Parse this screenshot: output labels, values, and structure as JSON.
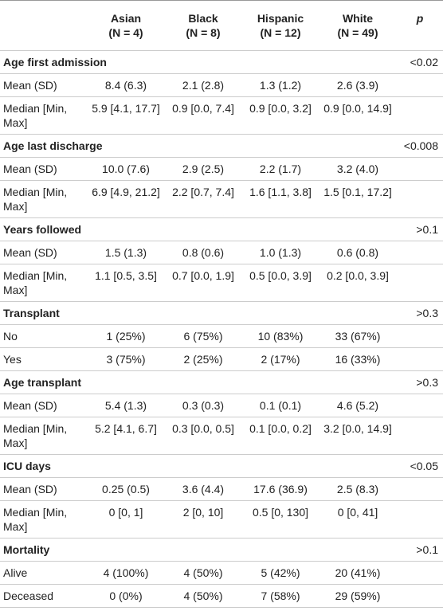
{
  "table": {
    "header": {
      "columns": [
        {
          "name": "Asian",
          "n": "(N = 4)"
        },
        {
          "name": "Black",
          "n": "(N = 8)"
        },
        {
          "name": "Hispanic",
          "n": "(N = 12)"
        },
        {
          "name": "White",
          "n": "(N = 49)"
        }
      ],
      "p": "p"
    },
    "sections": [
      {
        "title": "Age first admission",
        "p": "<0.02",
        "rows": [
          {
            "label": "Mean (SD)",
            "values": [
              "8.4 (6.3)",
              "2.1 (2.8)",
              "1.3 (1.2)",
              "2.6 (3.9)"
            ]
          },
          {
            "label": "Median [Min, Max]",
            "values": [
              "5.9 [4.1, 17.7]",
              "0.9 [0.0, 7.4]",
              "0.9 [0.0, 3.2]",
              "0.9 [0.0, 14.9]"
            ]
          }
        ]
      },
      {
        "title": "Age last discharge",
        "p": "<0.008",
        "rows": [
          {
            "label": "Mean (SD)",
            "values": [
              "10.0 (7.6)",
              "2.9 (2.5)",
              "2.2 (1.7)",
              "3.2 (4.0)"
            ]
          },
          {
            "label": "Median [Min, Max]",
            "values": [
              "6.9 [4.9, 21.2]",
              "2.2 [0.7, 7.4]",
              "1.6 [1.1, 3.8]",
              "1.5 [0.1, 17.2]"
            ]
          }
        ]
      },
      {
        "title": "Years followed",
        "p": ">0.1",
        "rows": [
          {
            "label": "Mean (SD)",
            "values": [
              "1.5 (1.3)",
              "0.8 (0.6)",
              "1.0 (1.3)",
              "0.6 (0.8)"
            ]
          },
          {
            "label": "Median [Min, Max]",
            "values": [
              "1.1 [0.5, 3.5]",
              "0.7 [0.0, 1.9]",
              "0.5 [0.0, 3.9]",
              "0.2 [0.0, 3.9]"
            ]
          }
        ]
      },
      {
        "title": "Transplant",
        "p": ">0.3",
        "rows": [
          {
            "label": "No",
            "values": [
              "1 (25%)",
              "6 (75%)",
              "10 (83%)",
              "33 (67%)"
            ]
          },
          {
            "label": "Yes",
            "values": [
              "3 (75%)",
              "2 (25%)",
              "2 (17%)",
              "16 (33%)"
            ]
          }
        ]
      },
      {
        "title": "Age transplant",
        "p": ">0.3",
        "rows": [
          {
            "label": "Mean (SD)",
            "values": [
              "5.4 (1.3)",
              "0.3 (0.3)",
              "0.1 (0.1)",
              "4.6 (5.2)"
            ]
          },
          {
            "label": "Median [Min, Max]",
            "values": [
              "5.2 [4.1, 6.7]",
              "0.3 [0.0, 0.5]",
              "0.1 [0.0, 0.2]",
              "3.2 [0.0, 14.9]"
            ]
          }
        ]
      },
      {
        "title": "ICU days",
        "p": "<0.05",
        "rows": [
          {
            "label": "Mean (SD)",
            "values": [
              "0.25 (0.5)",
              "3.6 (4.4)",
              "17.6 (36.9)",
              "2.5 (8.3)"
            ]
          },
          {
            "label": "Median [Min, Max]",
            "values": [
              "0 [0, 1]",
              "2 [0, 10]",
              "0.5 [0, 130]",
              "0 [0, 41]"
            ]
          }
        ]
      },
      {
        "title": "Mortality",
        "p": ">0.1",
        "rows": [
          {
            "label": "Alive",
            "values": [
              "4 (100%)",
              "4 (50%)",
              "5 (42%)",
              "20 (41%)"
            ]
          },
          {
            "label": "Deceased",
            "values": [
              "0 (0%)",
              "4 (50%)",
              "7 (58%)",
              "29 (59%)"
            ]
          }
        ]
      }
    ]
  }
}
